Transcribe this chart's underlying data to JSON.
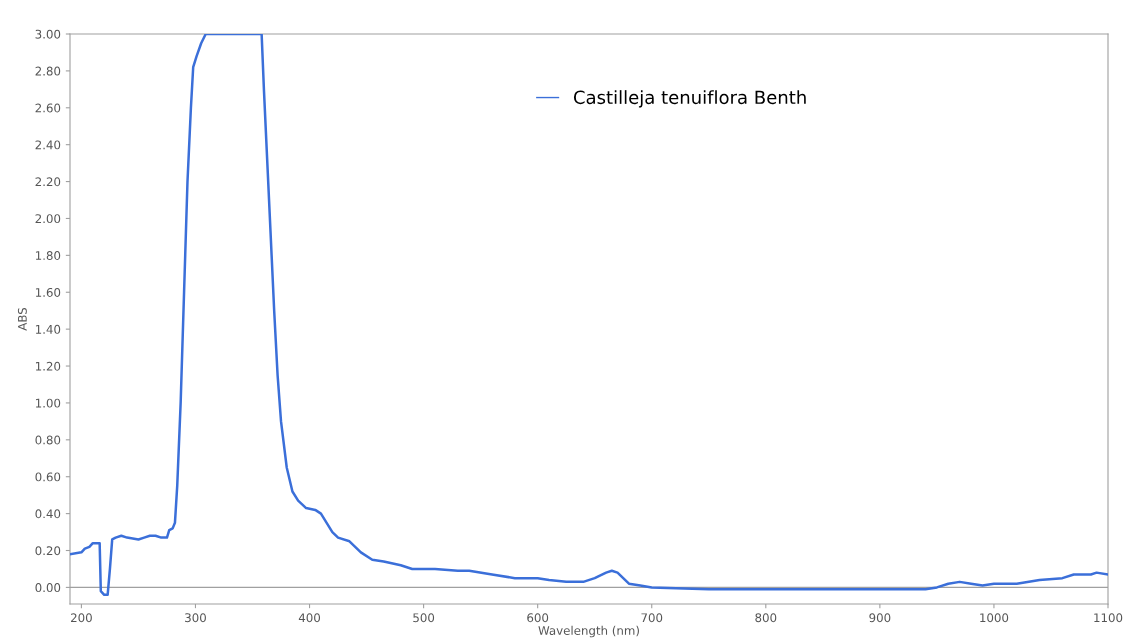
{
  "chart_data": {
    "type": "line",
    "xlabel": "Wavelength (nm)",
    "ylabel": "ABS",
    "xlim": [
      190,
      1100
    ],
    "xticks": [
      200,
      300,
      400,
      500,
      600,
      700,
      800,
      900,
      1000,
      1100
    ],
    "ylim": [
      -0.09,
      3.0
    ],
    "yticks": [
      {
        "value": 0,
        "label": "0.00"
      },
      {
        "value": 0.2,
        "label": "0.20"
      },
      {
        "value": 0.4,
        "label": "0.40"
      },
      {
        "value": 0.6,
        "label": "0.60"
      },
      {
        "value": 0.8,
        "label": "0.80"
      },
      {
        "value": 1.0,
        "label": "1.00"
      },
      {
        "value": 1.2,
        "label": "1.20"
      },
      {
        "value": 1.4,
        "label": "1.40"
      },
      {
        "value": 1.6,
        "label": "1.60"
      },
      {
        "value": 1.8,
        "label": "1.80"
      },
      {
        "value": 2.0,
        "label": "2.00"
      },
      {
        "value": 2.2,
        "label": "2.20"
      },
      {
        "value": 2.4,
        "label": "2.40"
      },
      {
        "value": 2.6,
        "label": "2.60"
      },
      {
        "value": 2.8,
        "label": "2.80"
      },
      {
        "value": 3.0,
        "label": "3.00"
      }
    ],
    "grid": false,
    "legend": "top",
    "marker": "none",
    "line_style": "solid",
    "ref_lines": [
      {
        "axis": "y",
        "value": 0,
        "color": "#a0a0a0"
      }
    ],
    "series": [
      {
        "name": "Castilleja tenuiflora Benth",
        "color": "#3b6fd9",
        "x": [
          190,
          200,
          203,
          207,
          210,
          215,
          216,
          217,
          220,
          223,
          225,
          227,
          230,
          235,
          240,
          250,
          255,
          260,
          265,
          270,
          275,
          277,
          280,
          282,
          284,
          287,
          290,
          293,
          296,
          298,
          301,
          305,
          309,
          358,
          360,
          363,
          366,
          369,
          372,
          375,
          380,
          385,
          390,
          397,
          405,
          410,
          415,
          420,
          425,
          435,
          445,
          455,
          465,
          480,
          490,
          510,
          530,
          540,
          560,
          580,
          600,
          610,
          625,
          640,
          650,
          660,
          665,
          670,
          680,
          690,
          700,
          750,
          800,
          850,
          900,
          940,
          950,
          960,
          970,
          980,
          990,
          1000,
          1020,
          1040,
          1060,
          1070,
          1085,
          1090,
          1100
        ],
        "values": [
          0.18,
          0.19,
          0.21,
          0.22,
          0.24,
          0.24,
          0.24,
          -0.02,
          -0.04,
          -0.04,
          0.1,
          0.26,
          0.27,
          0.28,
          0.27,
          0.26,
          0.27,
          0.28,
          0.28,
          0.27,
          0.27,
          0.31,
          0.32,
          0.35,
          0.55,
          1.0,
          1.6,
          2.2,
          2.6,
          2.82,
          2.88,
          2.95,
          3.0,
          3.0,
          2.7,
          2.3,
          1.9,
          1.5,
          1.15,
          0.9,
          0.65,
          0.52,
          0.47,
          0.43,
          0.42,
          0.4,
          0.35,
          0.3,
          0.27,
          0.25,
          0.19,
          0.15,
          0.14,
          0.12,
          0.1,
          0.1,
          0.09,
          0.09,
          0.07,
          0.05,
          0.05,
          0.04,
          0.03,
          0.03,
          0.05,
          0.08,
          0.09,
          0.08,
          0.02,
          0.01,
          0.0,
          -0.01,
          -0.01,
          -0.01,
          -0.01,
          -0.01,
          0.0,
          0.02,
          0.03,
          0.02,
          0.01,
          0.02,
          0.02,
          0.04,
          0.05,
          0.07,
          0.07,
          0.08,
          0.07
        ]
      }
    ]
  }
}
